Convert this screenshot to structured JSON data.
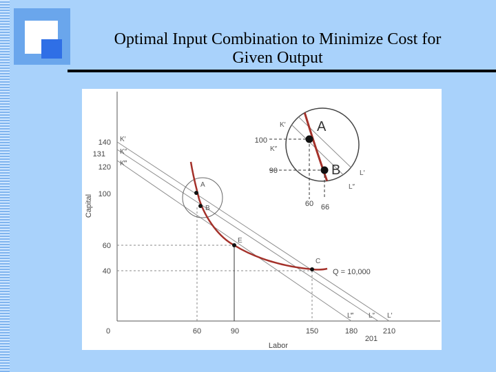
{
  "slide": {
    "title_line1": "Optimal Input Combination to Minimize Cost for",
    "title_line2": "Given Output"
  },
  "colors": {
    "background": "#a9d2fb",
    "curve": "#a4312a",
    "isocost": "#8c8c8c"
  },
  "diagram": {
    "y_axis_label": "Capital",
    "x_axis_label": "Labor",
    "origin_label": "0",
    "y_ticks": [
      "140",
      "131",
      "120",
      "100",
      "60",
      "40"
    ],
    "x_ticks": [
      "60",
      "90",
      "150",
      "180",
      "201",
      "210"
    ],
    "isocost_top_labels": [
      "K′",
      "K″",
      "K‴"
    ],
    "isocost_bottom_labels": [
      "L‴",
      "L″",
      "L′"
    ],
    "points": [
      "A",
      "B",
      "E",
      "C"
    ],
    "isoquant_label": "Q = 10,000",
    "inset": {
      "y_ticks": [
        "100",
        "90"
      ],
      "x_ticks": [
        "60",
        "66"
      ],
      "line_labels": [
        "K′",
        "K″"
      ],
      "small_labels": [
        "L′",
        "L″"
      ],
      "points": [
        "A",
        "B"
      ]
    }
  },
  "chart_data": {
    "type": "line",
    "xlabel": "Labor",
    "ylabel": "Capital",
    "series": [
      {
        "name": "Q = 10,000",
        "points": [
          [
            60,
            100
          ],
          [
            66,
            90
          ],
          [
            90,
            60
          ],
          [
            150,
            40
          ]
        ]
      },
      {
        "name": "K′L′",
        "points": [
          [
            0,
            140
          ],
          [
            210,
            0
          ]
        ]
      },
      {
        "name": "K″L″",
        "points": [
          [
            0,
            131
          ],
          [
            201,
            0
          ]
        ]
      },
      {
        "name": "K‴L‴",
        "points": [
          [
            0,
            120
          ],
          [
            180,
            0
          ]
        ]
      }
    ]
  }
}
